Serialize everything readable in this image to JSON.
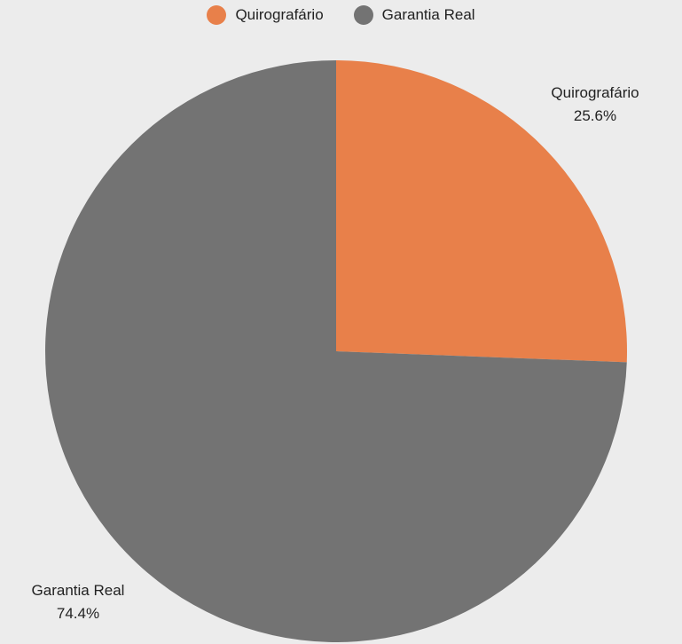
{
  "chart_data": {
    "type": "pie",
    "series": [
      {
        "name": "Quirografário",
        "value": 25.6,
        "label": "25.6%",
        "color": "#e8804a"
      },
      {
        "name": "Garantia Real",
        "value": 74.4,
        "label": "74.4%",
        "color": "#737373"
      }
    ],
    "legend_position": "top-center",
    "start": "12 o'clock",
    "direction": "clockwise"
  }
}
